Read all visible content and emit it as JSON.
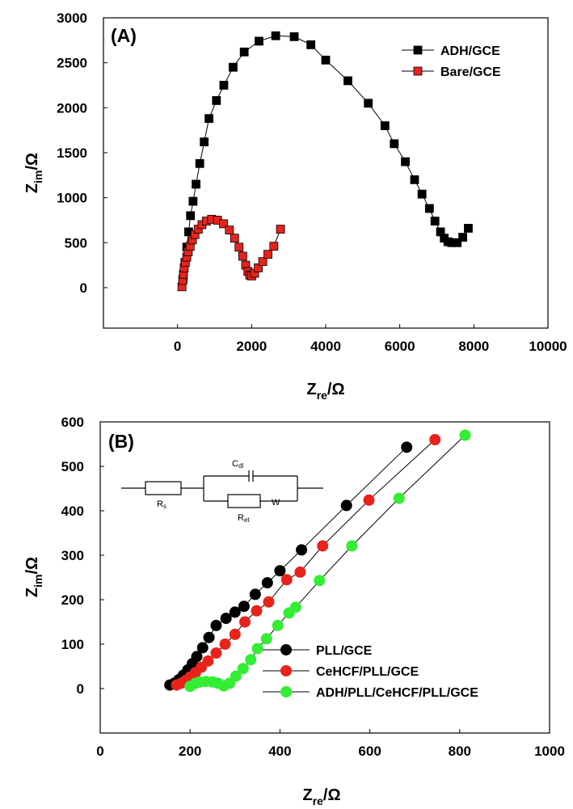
{
  "chart_data": [
    {
      "type": "scatter",
      "panel_label": "(A)",
      "xlabel": {
        "main": "Z",
        "sub": "re",
        "tail": "/Ω"
      },
      "ylabel": {
        "main": "Z",
        "sub": "im",
        "tail": "/Ω"
      },
      "xlim": [
        -2000,
        10000
      ],
      "ylim": [
        -450,
        3000
      ],
      "xticks": [
        "0",
        "2000",
        "4000",
        "6000",
        "8000",
        "10000"
      ],
      "yticks": [
        "0",
        "500",
        "1000",
        "1500",
        "2000",
        "2500",
        "3000"
      ],
      "legend_position": "top-right",
      "series": [
        {
          "name": "ADH/GCE",
          "color": "#000000",
          "marker": "square",
          "x": [
            150,
            200,
            250,
            300,
            350,
            420,
            500,
            600,
            720,
            850,
            1050,
            1250,
            1500,
            1800,
            2200,
            2650,
            3150,
            3600,
            4000,
            4600,
            5150,
            5600,
            5850,
            6150,
            6400,
            6600,
            6800,
            6950,
            7100,
            7200,
            7300,
            7400,
            7550,
            7700,
            7850
          ],
          "y": [
            100,
            280,
            450,
            620,
            800,
            960,
            1150,
            1380,
            1620,
            1880,
            2080,
            2250,
            2450,
            2620,
            2740,
            2800,
            2790,
            2700,
            2530,
            2300,
            2050,
            1800,
            1600,
            1400,
            1200,
            1040,
            880,
            740,
            620,
            550,
            510,
            500,
            500,
            560,
            660
          ]
        },
        {
          "name": "Bare/GCE",
          "color": "#e8231b",
          "marker": "square",
          "x": [
            120,
            140,
            160,
            180,
            210,
            250,
            290,
            340,
            400,
            470,
            560,
            660,
            780,
            920,
            1080,
            1240,
            1400,
            1540,
            1660,
            1760,
            1840,
            1900,
            1950,
            2000,
            2080,
            2180,
            2300,
            2440,
            2600,
            2780
          ],
          "y": [
            10,
            80,
            150,
            220,
            280,
            340,
            400,
            460,
            530,
            590,
            650,
            700,
            740,
            760,
            750,
            710,
            640,
            550,
            450,
            350,
            250,
            180,
            140,
            130,
            160,
            220,
            290,
            370,
            460,
            650
          ]
        }
      ]
    },
    {
      "type": "scatter",
      "panel_label": "(B)",
      "xlabel": {
        "main": "Z",
        "sub": "re",
        "tail": "/Ω"
      },
      "ylabel": {
        "main": "Z",
        "sub": "im",
        "tail": "/Ω"
      },
      "xlim": [
        0,
        1000
      ],
      "ylim": [
        -100,
        600
      ],
      "xticks": [
        "0",
        "200",
        "400",
        "600",
        "800",
        "1000"
      ],
      "yticks": [
        "0",
        "100",
        "200",
        "300",
        "400",
        "500",
        "600"
      ],
      "legend_position": "bottom-right",
      "inset_circuit": {
        "labels": {
          "cdl": "C",
          "cdl_sub": "dl",
          "rs": "R",
          "rs_sub": "s",
          "ret": "R",
          "ret_sub": "et",
          "w": "W"
        }
      },
      "series": [
        {
          "name": "PLL/GCE",
          "color": "#000000",
          "marker": "circle",
          "x": [
            155,
            165,
            175,
            185,
            195,
            205,
            215,
            228,
            242,
            258,
            280,
            300,
            320,
            345,
            372,
            400,
            448,
            548,
            682
          ],
          "y": [
            8,
            12,
            20,
            30,
            42,
            56,
            72,
            92,
            115,
            142,
            158,
            172,
            185,
            212,
            238,
            265,
            312,
            412,
            543
          ]
        },
        {
          "name": "CeHCF/PLL/GCE",
          "color": "#e8231b",
          "marker": "circle",
          "x": [
            170,
            180,
            190,
            200,
            212,
            225,
            240,
            258,
            278,
            300,
            322,
            348,
            375,
            415,
            445,
            495,
            598,
            745
          ],
          "y": [
            8,
            12,
            18,
            26,
            36,
            48,
            62,
            80,
            100,
            122,
            150,
            175,
            195,
            245,
            262,
            321,
            424,
            560
          ]
        },
        {
          "name": "ADH/PLL/CeHCF/PLL/GCE",
          "color": "#33ee33",
          "marker": "circle",
          "x": [
            200,
            212,
            222,
            235,
            250,
            262,
            275,
            288,
            302,
            318,
            335,
            350,
            370,
            395,
            420,
            435,
            488,
            560,
            665,
            812
          ],
          "y": [
            5,
            12,
            15,
            16,
            15,
            12,
            6,
            12,
            28,
            45,
            65,
            90,
            112,
            142,
            170,
            183,
            243,
            321,
            428,
            570
          ]
        }
      ]
    }
  ]
}
